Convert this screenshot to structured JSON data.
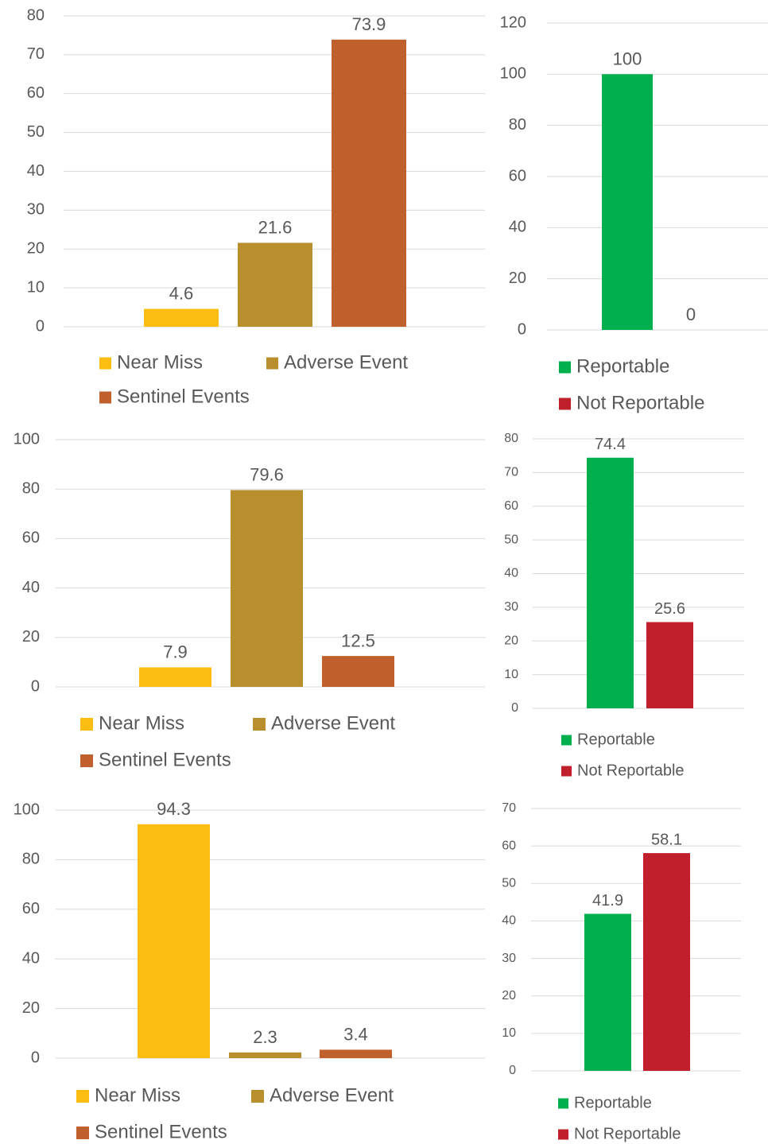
{
  "chart_data": [
    {
      "type": "bar",
      "ylim": [
        0,
        80
      ],
      "yticks": [
        0,
        10,
        20,
        30,
        40,
        50,
        60,
        70,
        80
      ],
      "grid": true,
      "series": [
        {
          "name": "Near Miss",
          "color": "#fbbd12",
          "values": [
            4.6
          ]
        },
        {
          "name": "Adverse Event",
          "color": "#b98f2e",
          "values": [
            21.6
          ]
        },
        {
          "name": "Sentinel Events",
          "color": "#c0602d",
          "values": [
            73.9
          ]
        }
      ]
    },
    {
      "type": "bar",
      "ylim": [
        0,
        120
      ],
      "yticks": [
        0,
        20,
        40,
        60,
        80,
        100,
        120
      ],
      "grid": true,
      "series": [
        {
          "name": "Reportable",
          "color": "#00b04f",
          "values": [
            100
          ]
        },
        {
          "name": "Not Reportable",
          "color": "#c01f2b",
          "values": [
            0
          ]
        }
      ]
    },
    {
      "type": "bar",
      "ylim": [
        0,
        100
      ],
      "yticks": [
        0,
        20,
        40,
        60,
        80,
        100
      ],
      "grid": true,
      "series": [
        {
          "name": "Near Miss",
          "color": "#fbbd12",
          "values": [
            7.9
          ]
        },
        {
          "name": "Adverse Event",
          "color": "#b98f2e",
          "values": [
            79.6
          ]
        },
        {
          "name": "Sentinel Events",
          "color": "#c0602d",
          "values": [
            12.5
          ]
        }
      ]
    },
    {
      "type": "bar",
      "ylim": [
        0,
        80
      ],
      "yticks": [
        0,
        10,
        20,
        30,
        40,
        50,
        60,
        70,
        80
      ],
      "grid": true,
      "series": [
        {
          "name": "Reportable",
          "color": "#00b04f",
          "values": [
            74.4
          ]
        },
        {
          "name": "Not Reportable",
          "color": "#c01f2b",
          "values": [
            25.6
          ]
        }
      ]
    },
    {
      "type": "bar",
      "ylim": [
        0,
        100
      ],
      "yticks": [
        0,
        20,
        40,
        60,
        80,
        100
      ],
      "grid": true,
      "series": [
        {
          "name": "Near Miss",
          "color": "#fbbd12",
          "values": [
            94.3
          ]
        },
        {
          "name": "Adverse Event",
          "color": "#b98f2e",
          "values": [
            2.3
          ]
        },
        {
          "name": "Sentinel Events",
          "color": "#c0602d",
          "values": [
            3.4
          ]
        }
      ]
    },
    {
      "type": "bar",
      "ylim": [
        0,
        70
      ],
      "yticks": [
        0,
        10,
        20,
        30,
        40,
        50,
        60,
        70
      ],
      "grid": true,
      "series": [
        {
          "name": "Reportable",
          "color": "#00b04f",
          "values": [
            41.9
          ]
        },
        {
          "name": "Not Reportable",
          "color": "#c01f2b",
          "values": [
            58.1
          ]
        }
      ]
    }
  ]
}
